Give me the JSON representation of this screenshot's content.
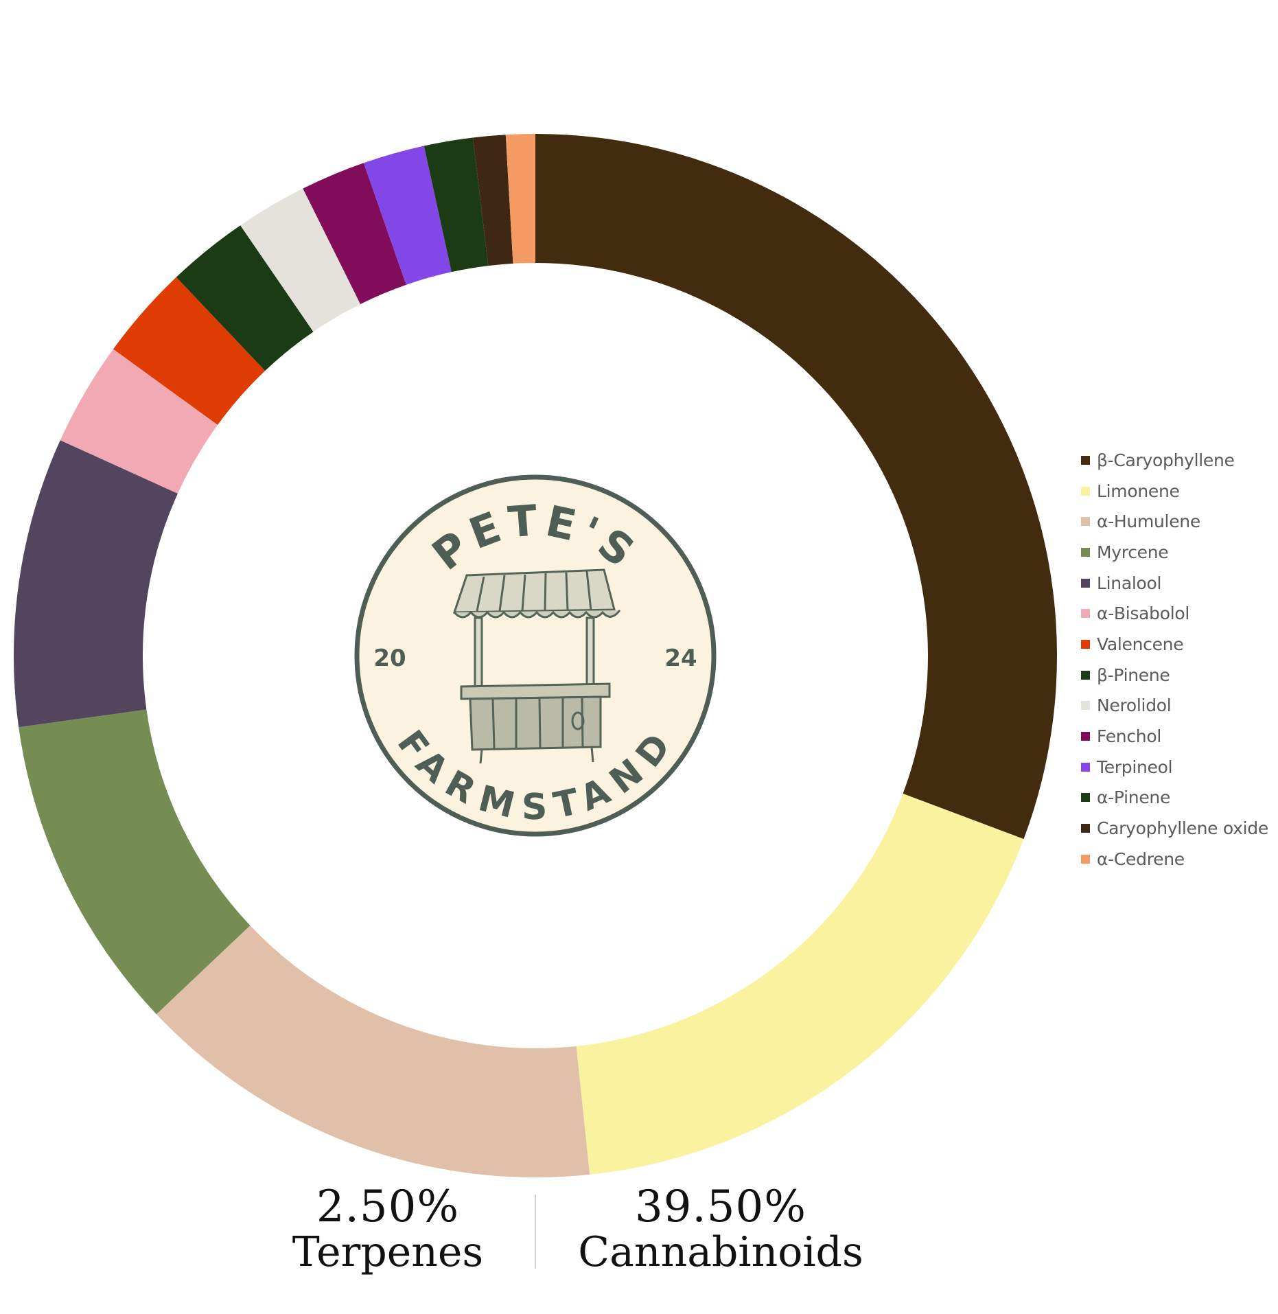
{
  "chart_data": {
    "type": "pie",
    "style": "donut",
    "title": "",
    "legend_position": "right",
    "series": [
      {
        "name": "β-Caryophyllene",
        "value": 30.5,
        "color": "#432b0f"
      },
      {
        "name": "Limonene",
        "value": 17.5,
        "color": "#f9f29f"
      },
      {
        "name": "α-Humulene",
        "value": 14.5,
        "color": "#e0c0a8"
      },
      {
        "name": "Myrcene",
        "value": 9.8,
        "color": "#758d52"
      },
      {
        "name": "Linalool",
        "value": 8.9,
        "color": "#54455e"
      },
      {
        "name": "α-Bisabolol",
        "value": 3.2,
        "color": "#f1a9b3"
      },
      {
        "name": "Valencene",
        "value": 2.9,
        "color": "#de3c02"
      },
      {
        "name": "β-Pinene",
        "value": 2.5,
        "color": "#1b3b14"
      },
      {
        "name": "Nerolidol",
        "value": 2.2,
        "color": "#e5e2dc"
      },
      {
        "name": "Fenchol",
        "value": 2.0,
        "color": "#800c5a"
      },
      {
        "name": "Terpineol",
        "value": 1.9,
        "color": "#8347e7"
      },
      {
        "name": "α-Pinene",
        "value": 1.5,
        "color": "#1b3b14"
      },
      {
        "name": "Caryophyllene oxide",
        "value": 1.0,
        "color": "#3e2813"
      },
      {
        "name": "α-Cedrene",
        "value": 0.9,
        "color": "#f39b63"
      }
    ]
  },
  "logo": {
    "top_text": "PETE'S",
    "bottom_text": "FARMSTAND",
    "year_left": "20",
    "year_right": "24",
    "bg_color": "#fbf2df",
    "ink_color": "#4f5e55"
  },
  "stats": {
    "terpenes": {
      "value": "2.50%",
      "label": "Terpenes"
    },
    "cannabinoids": {
      "value": "39.50%",
      "label": "Cannabinoids"
    }
  }
}
